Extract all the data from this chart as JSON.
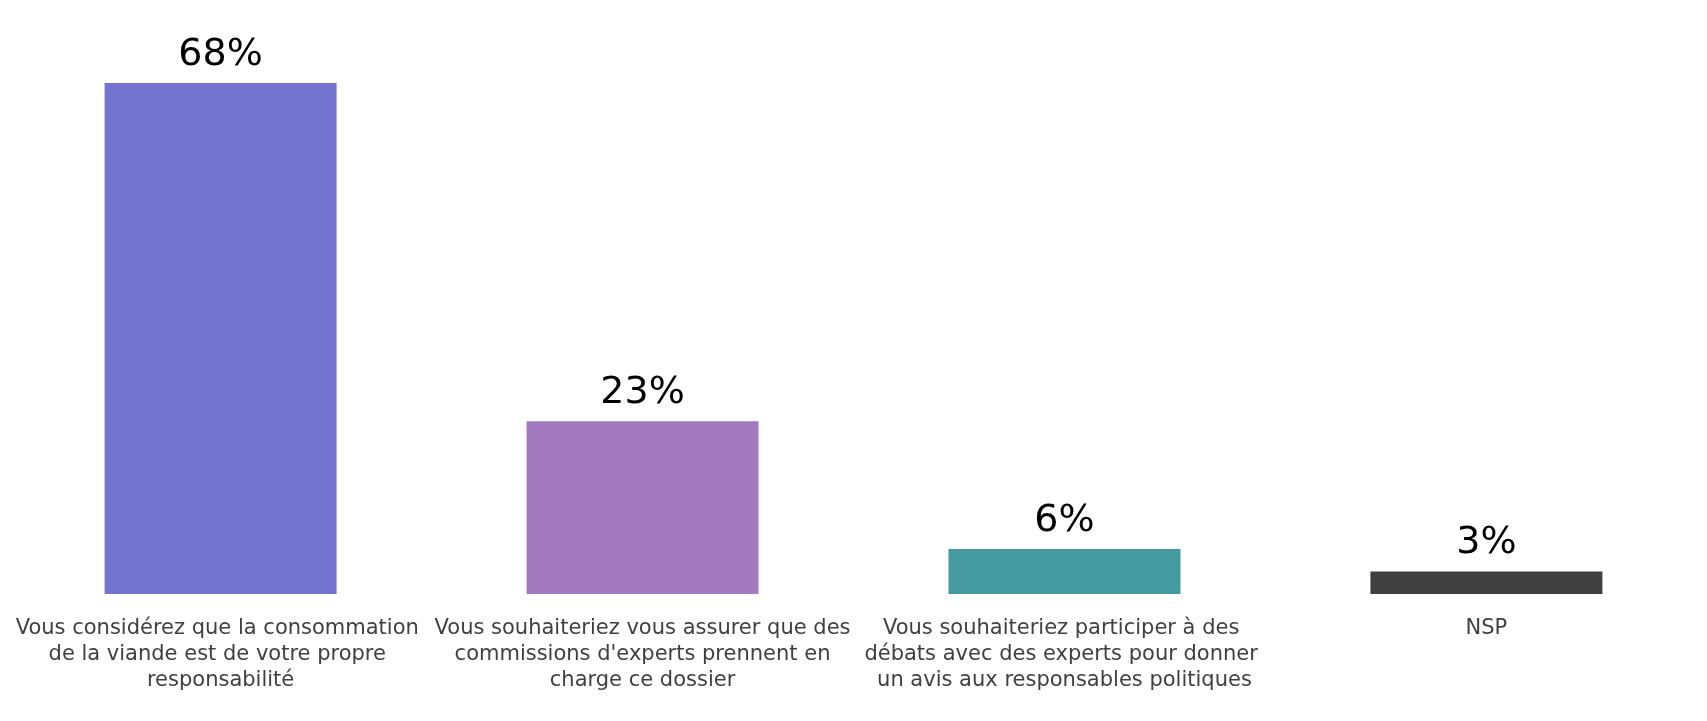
{
  "chart_data": {
    "type": "bar",
    "categories": [
      "Vous considérez que la consommation de la viande est de votre propre responsabilité",
      "Vous souhaiteriez vous assurer que des commissions d'experts prennent en charge ce dossier",
      "Vous souhaiteriez participer à des débats avec des experts pour donner un avis aux responsables politiques",
      "NSP"
    ],
    "values": [
      68,
      23,
      6,
      3
    ],
    "colors": [
      "#7474d0",
      "#a379bf",
      "#459aa0",
      "#404040"
    ],
    "value_labels": [
      "68%",
      "23%",
      "6%",
      "3%"
    ],
    "tick_labels": "x"
  }
}
